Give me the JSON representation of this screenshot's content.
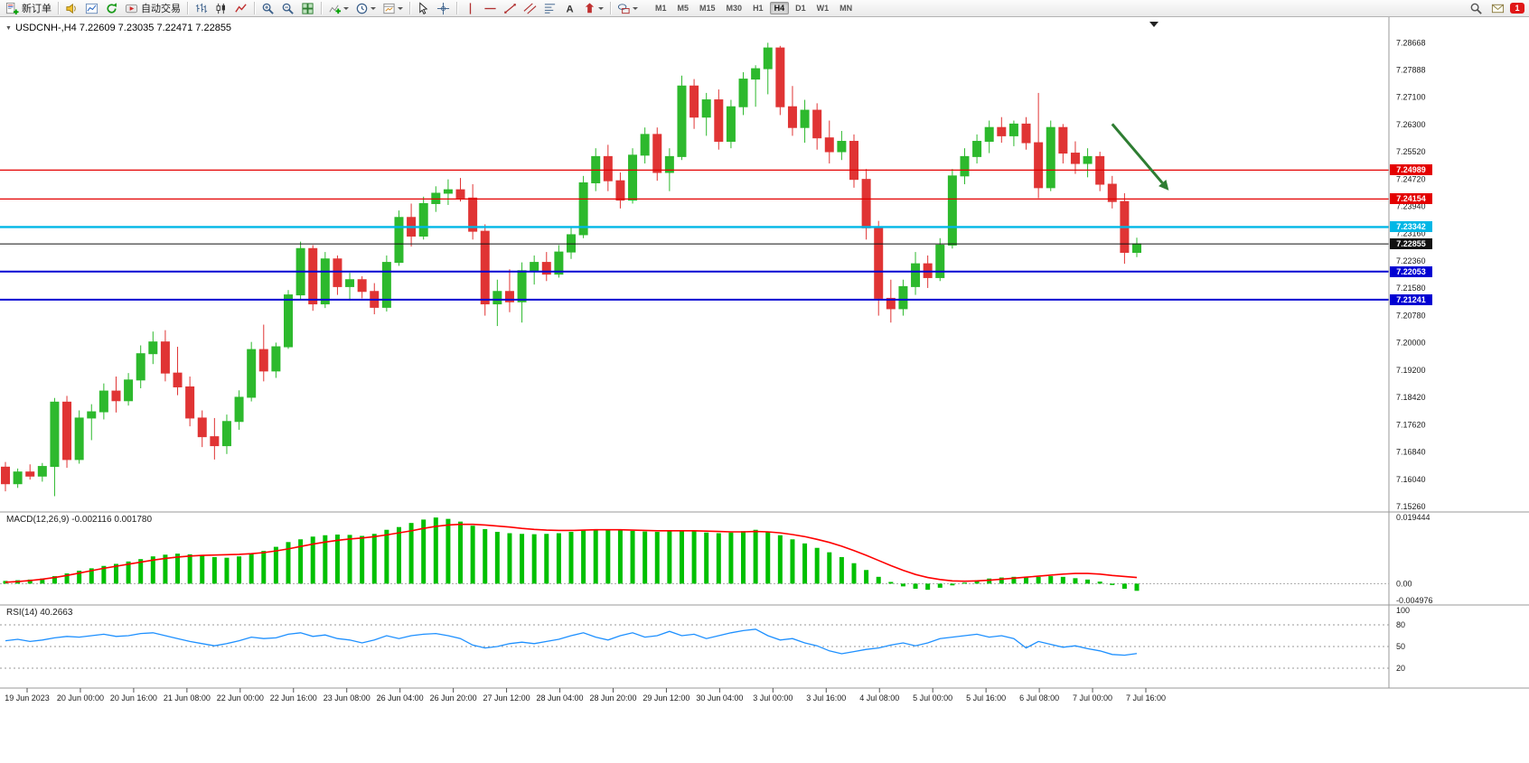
{
  "toolbar": {
    "new_order_label": "新订单",
    "auto_trading_label": "自动交易",
    "timeframes": [
      "M1",
      "M5",
      "M15",
      "M30",
      "H1",
      "H4",
      "D1",
      "W1",
      "MN"
    ],
    "active_timeframe": "H4",
    "mail_badge": "1"
  },
  "chart_data": {
    "type": "candlestick",
    "symbol": "USDCNH-",
    "period": "H4",
    "title_line": "USDCNH-,H4 7.22609 7.23035 7.22471 7.22855",
    "ohlc_current": {
      "open": 7.22609,
      "high": 7.23035,
      "low": 7.22471,
      "close": 7.22855
    },
    "main": {
      "ylim": [
        7.1526,
        7.2928
      ],
      "up_color": "#2db92d",
      "down_color": "#e03434",
      "y_axis_labels": [
        "7.28668",
        "7.27888",
        "7.27100",
        "7.26300",
        "7.25520",
        "7.24720",
        "7.23940",
        "7.23160",
        "7.22360",
        "7.21580",
        "7.20780",
        "7.20000",
        "7.19200",
        "7.18420",
        "7.17620",
        "7.16840",
        "7.16040",
        "7.15260"
      ],
      "hlines": [
        {
          "price": 7.24989,
          "label": "7.24989",
          "color": "#e40000",
          "width": 1.2
        },
        {
          "price": 7.24154,
          "label": "7.24154",
          "color": "#e40000",
          "width": 1.2
        },
        {
          "price": 7.23342,
          "label": "7.23342",
          "color": "#00b7e6",
          "width": 2.4
        },
        {
          "price": 7.22855,
          "label": "7.22855",
          "color": "#111111",
          "width": 1
        },
        {
          "price": 7.22053,
          "label": "7.22053",
          "color": "#0000d2",
          "width": 2
        },
        {
          "price": 7.21241,
          "label": "7.21241",
          "color": "#0000d2",
          "width": 2
        }
      ],
      "arrow": {
        "bar_from": 90,
        "price_from": 7.2632,
        "bar_to": 94.6,
        "price_to": 7.244,
        "color": "#2e7d32",
        "width": 3
      },
      "candles": [
        [
          7.164,
          7.1655,
          7.157,
          7.1592
        ],
        [
          7.1592,
          7.1636,
          7.158,
          7.1626
        ],
        [
          7.1626,
          7.1648,
          7.1604,
          7.1614
        ],
        [
          7.1614,
          7.1652,
          7.1598,
          7.1642
        ],
        [
          7.1642,
          7.184,
          7.1556,
          7.1828
        ],
        [
          7.1828,
          7.1846,
          7.1638,
          7.1662
        ],
        [
          7.1662,
          7.1804,
          7.165,
          7.1782
        ],
        [
          7.1782,
          7.1822,
          7.1718,
          7.18
        ],
        [
          7.18,
          7.1882,
          7.1778,
          7.186
        ],
        [
          7.186,
          7.1902,
          7.1798,
          7.1832
        ],
        [
          7.1832,
          7.1912,
          7.1818,
          7.1892
        ],
        [
          7.1892,
          7.1992,
          7.1868,
          7.1968
        ],
        [
          7.1968,
          7.2032,
          7.1938,
          7.2002
        ],
        [
          7.2002,
          7.2036,
          7.1888,
          7.1912
        ],
        [
          7.1912,
          7.1988,
          7.1848,
          7.1872
        ],
        [
          7.1872,
          7.1902,
          7.1758,
          7.1782
        ],
        [
          7.1782,
          7.1804,
          7.1698,
          7.1728
        ],
        [
          7.1728,
          7.1782,
          7.1662,
          7.1702
        ],
        [
          7.1702,
          7.1792,
          7.1678,
          7.1772
        ],
        [
          7.1772,
          7.1862,
          7.1748,
          7.1842
        ],
        [
          7.1842,
          7.2002,
          7.183,
          7.198
        ],
        [
          7.198,
          7.2052,
          7.1888,
          7.1918
        ],
        [
          7.1918,
          7.2,
          7.1898,
          7.1988
        ],
        [
          7.1988,
          7.2152,
          7.1982,
          7.2138
        ],
        [
          7.2138,
          7.2292,
          7.2126,
          7.2272
        ],
        [
          7.2272,
          7.2282,
          7.2092,
          7.2112
        ],
        [
          7.2112,
          7.2262,
          7.21,
          7.2242
        ],
        [
          7.2242,
          7.2252,
          7.2138,
          7.2162
        ],
        [
          7.2162,
          7.2202,
          7.2122,
          7.2182
        ],
        [
          7.2182,
          7.2192,
          7.2128,
          7.2148
        ],
        [
          7.2148,
          7.2172,
          7.2082,
          7.2102
        ],
        [
          7.2102,
          7.2252,
          7.209,
          7.2232
        ],
        [
          7.2232,
          7.2382,
          7.2222,
          7.2362
        ],
        [
          7.2362,
          7.2402,
          7.2278,
          7.2308
        ],
        [
          7.2308,
          7.2422,
          7.2298,
          7.2402
        ],
        [
          7.2402,
          7.2452,
          7.2378,
          7.2432
        ],
        [
          7.2432,
          7.2472,
          7.2398,
          7.2442
        ],
        [
          7.2442,
          7.2476,
          7.2408,
          7.2418
        ],
        [
          7.2418,
          7.2458,
          7.2298,
          7.2322
        ],
        [
          7.2322,
          7.2342,
          7.2078,
          7.2112
        ],
        [
          7.2112,
          7.2182,
          7.2048,
          7.2148
        ],
        [
          7.2148,
          7.2212,
          7.2088,
          7.2118
        ],
        [
          7.2118,
          7.2232,
          7.2058,
          7.2208
        ],
        [
          7.2208,
          7.2252,
          7.2168,
          7.2232
        ],
        [
          7.2232,
          7.2262,
          7.2178,
          7.2198
        ],
        [
          7.2198,
          7.2282,
          7.2188,
          7.2262
        ],
        [
          7.2262,
          7.2332,
          7.2242,
          7.2312
        ],
        [
          7.2312,
          7.2482,
          7.2302,
          7.2462
        ],
        [
          7.2462,
          7.2562,
          7.2438,
          7.2538
        ],
        [
          7.2538,
          7.2572,
          7.2438,
          7.2468
        ],
        [
          7.2468,
          7.2492,
          7.2388,
          7.2412
        ],
        [
          7.2412,
          7.2562,
          7.2402,
          7.2542
        ],
        [
          7.2542,
          7.2622,
          7.2518,
          7.2602
        ],
        [
          7.2602,
          7.2622,
          7.2468,
          7.2492
        ],
        [
          7.2492,
          7.2562,
          7.2438,
          7.2538
        ],
        [
          7.2538,
          7.2772,
          7.2528,
          7.2742
        ],
        [
          7.2742,
          7.2762,
          7.2618,
          7.2652
        ],
        [
          7.2652,
          7.2722,
          7.2598,
          7.2702
        ],
        [
          7.2702,
          7.2732,
          7.2558,
          7.2582
        ],
        [
          7.2582,
          7.2702,
          7.2562,
          7.2682
        ],
        [
          7.2682,
          7.2782,
          7.2658,
          7.2762
        ],
        [
          7.2762,
          7.2802,
          7.2682,
          7.2792
        ],
        [
          7.2792,
          7.2867,
          7.2718,
          7.2852
        ],
        [
          7.2852,
          7.2858,
          7.2658,
          7.2682
        ],
        [
          7.2682,
          7.2742,
          7.2598,
          7.2622
        ],
        [
          7.2622,
          7.2702,
          7.2578,
          7.2672
        ],
        [
          7.2672,
          7.2692,
          7.2558,
          7.2592
        ],
        [
          7.2592,
          7.2642,
          7.2518,
          7.2552
        ],
        [
          7.2552,
          7.2612,
          7.2528,
          7.2582
        ],
        [
          7.2582,
          7.2602,
          7.2448,
          7.2472
        ],
        [
          7.2472,
          7.2502,
          7.2298,
          7.2332
        ],
        [
          7.2332,
          7.2352,
          7.2078,
          7.2128
        ],
        [
          7.2128,
          7.2182,
          7.2058,
          7.2098
        ],
        [
          7.2098,
          7.2182,
          7.2078,
          7.2162
        ],
        [
          7.2162,
          7.2262,
          7.2138,
          7.2228
        ],
        [
          7.2228,
          7.2252,
          7.2158,
          7.2188
        ],
        [
          7.2188,
          7.2302,
          7.2178,
          7.2282
        ],
        [
          7.2282,
          7.2502,
          7.2272,
          7.2482
        ],
        [
          7.2482,
          7.2562,
          7.2458,
          7.2538
        ],
        [
          7.2538,
          7.2602,
          7.2518,
          7.2582
        ],
        [
          7.2582,
          7.2642,
          7.2548,
          7.2622
        ],
        [
          7.2622,
          7.2652,
          7.2578,
          7.2598
        ],
        [
          7.2598,
          7.2642,
          7.2568,
          7.2632
        ],
        [
          7.2632,
          7.2652,
          7.2558,
          7.2578
        ],
        [
          7.2578,
          7.2722,
          7.2418,
          7.2448
        ],
        [
          7.2448,
          7.2642,
          7.2438,
          7.2622
        ],
        [
          7.2622,
          7.2632,
          7.2518,
          7.2548
        ],
        [
          7.2548,
          7.2582,
          7.2488,
          7.2518
        ],
        [
          7.2518,
          7.2562,
          7.2478,
          7.2538
        ],
        [
          7.2538,
          7.2552,
          7.2438,
          7.2458
        ],
        [
          7.2458,
          7.2482,
          7.2388,
          7.2408
        ],
        [
          7.2408,
          7.2432,
          7.2228,
          7.2261
        ],
        [
          7.22609,
          7.23035,
          7.22471,
          7.22855
        ]
      ]
    },
    "x_labels": [
      "19 Jun 2023",
      "20 Jun 00:00",
      "20 Jun 16:00",
      "21 Jun 08:00",
      "22 Jun 00:00",
      "22 Jun 16:00",
      "23 Jun 08:00",
      "26 Jun 04:00",
      "26 Jun 20:00",
      "27 Jun 12:00",
      "28 Jun 04:00",
      "28 Jun 20:00",
      "29 Jun 12:00",
      "30 Jun 04:00",
      "3 Jul 00:00",
      "3 Jul 16:00",
      "4 Jul 08:00",
      "5 Jul 00:00",
      "5 Jul 16:00",
      "6 Jul 08:00",
      "7 Jul 00:00",
      "7 Jul 16:00"
    ],
    "macd": {
      "display": "MACD(12,26,9) -0.002116 0.001780",
      "main_value": -0.002116,
      "signal_value": 0.00178,
      "ylim": [
        -0.0052,
        0.0197
      ],
      "axis_labels": [
        "0.019444",
        "0.00",
        "-0.004976"
      ],
      "histogram_color": "#00c000",
      "signal_color": "#ff0000",
      "histogram": [
        0.0008,
        0.001,
        0.0012,
        0.0015,
        0.0022,
        0.003,
        0.0038,
        0.0045,
        0.0052,
        0.0058,
        0.0065,
        0.0072,
        0.008,
        0.0085,
        0.0088,
        0.0086,
        0.0082,
        0.0078,
        0.0076,
        0.008,
        0.0088,
        0.0096,
        0.0108,
        0.0122,
        0.013,
        0.0138,
        0.0142,
        0.0144,
        0.0143,
        0.014,
        0.0146,
        0.0158,
        0.0166,
        0.0178,
        0.0188,
        0.0194,
        0.019,
        0.0182,
        0.017,
        0.016,
        0.0152,
        0.0148,
        0.0146,
        0.0145,
        0.0146,
        0.0148,
        0.0152,
        0.0158,
        0.016,
        0.0158,
        0.0156,
        0.0155,
        0.0153,
        0.0152,
        0.0154,
        0.0155,
        0.0154,
        0.015,
        0.0148,
        0.015,
        0.0154,
        0.0158,
        0.0152,
        0.0142,
        0.013,
        0.0118,
        0.0105,
        0.0092,
        0.0078,
        0.006,
        0.004,
        0.002,
        0.0005,
        -0.0008,
        -0.0015,
        -0.0018,
        -0.0012,
        -0.0005,
        0.0003,
        0.001,
        0.0015,
        0.0018,
        0.002,
        0.0018,
        0.002,
        0.0022,
        0.002,
        0.0016,
        0.0012,
        0.0006,
        -0.0004,
        -0.0015,
        -0.0021
      ],
      "signal": [
        0.0004,
        0.0006,
        0.0009,
        0.0013,
        0.0018,
        0.0024,
        0.0031,
        0.0038,
        0.0045,
        0.0051,
        0.0057,
        0.0063,
        0.0069,
        0.0074,
        0.0078,
        0.0081,
        0.0083,
        0.0084,
        0.0085,
        0.0086,
        0.0088,
        0.0091,
        0.0096,
        0.0102,
        0.0109,
        0.0116,
        0.0122,
        0.0127,
        0.0131,
        0.0134,
        0.0138,
        0.0143,
        0.0149,
        0.0155,
        0.0162,
        0.0168,
        0.0172,
        0.0174,
        0.0174,
        0.0172,
        0.0169,
        0.0166,
        0.0162,
        0.0159,
        0.0157,
        0.0156,
        0.0156,
        0.0157,
        0.0158,
        0.0158,
        0.0158,
        0.0157,
        0.0156,
        0.0155,
        0.0155,
        0.0155,
        0.0155,
        0.0154,
        0.0153,
        0.0152,
        0.0152,
        0.0153,
        0.0152,
        0.0149,
        0.0144,
        0.0138,
        0.013,
        0.0121,
        0.011,
        0.0097,
        0.0083,
        0.0068,
        0.0053,
        0.0039,
        0.0027,
        0.0018,
        0.0012,
        0.0008,
        0.0007,
        0.0008,
        0.001,
        0.0013,
        0.0016,
        0.0019,
        0.0022,
        0.0025,
        0.0028,
        0.003,
        0.003,
        0.0028,
        0.0024,
        0.0021,
        0.0018
      ]
    },
    "rsi": {
      "display": "RSI(14) 40.2663",
      "value": 40.2663,
      "ylim": [
        0,
        100
      ],
      "levels": [
        80,
        50,
        20
      ],
      "axis_labels": [
        "100",
        "80",
        "50",
        "20"
      ],
      "line_color": "#1e90ff",
      "values": [
        58,
        60,
        57,
        59,
        62,
        64,
        63,
        65,
        67,
        64,
        65,
        68,
        69,
        65,
        61,
        57,
        54,
        51,
        54,
        58,
        63,
        61,
        62,
        67,
        69,
        64,
        66,
        61,
        59,
        55,
        59,
        65,
        61,
        65,
        67,
        68,
        65,
        61,
        52,
        48,
        50,
        54,
        56,
        54,
        57,
        60,
        65,
        69,
        63,
        59,
        65,
        69,
        63,
        65,
        71,
        65,
        67,
        61,
        65,
        69,
        72,
        74,
        65,
        59,
        61,
        55,
        51,
        44,
        40,
        43,
        46,
        48,
        52,
        55,
        51,
        55,
        61,
        63,
        65,
        67,
        63,
        65,
        61,
        48,
        57,
        53,
        49,
        51,
        47,
        44,
        39,
        38,
        40.2663
      ]
    }
  }
}
